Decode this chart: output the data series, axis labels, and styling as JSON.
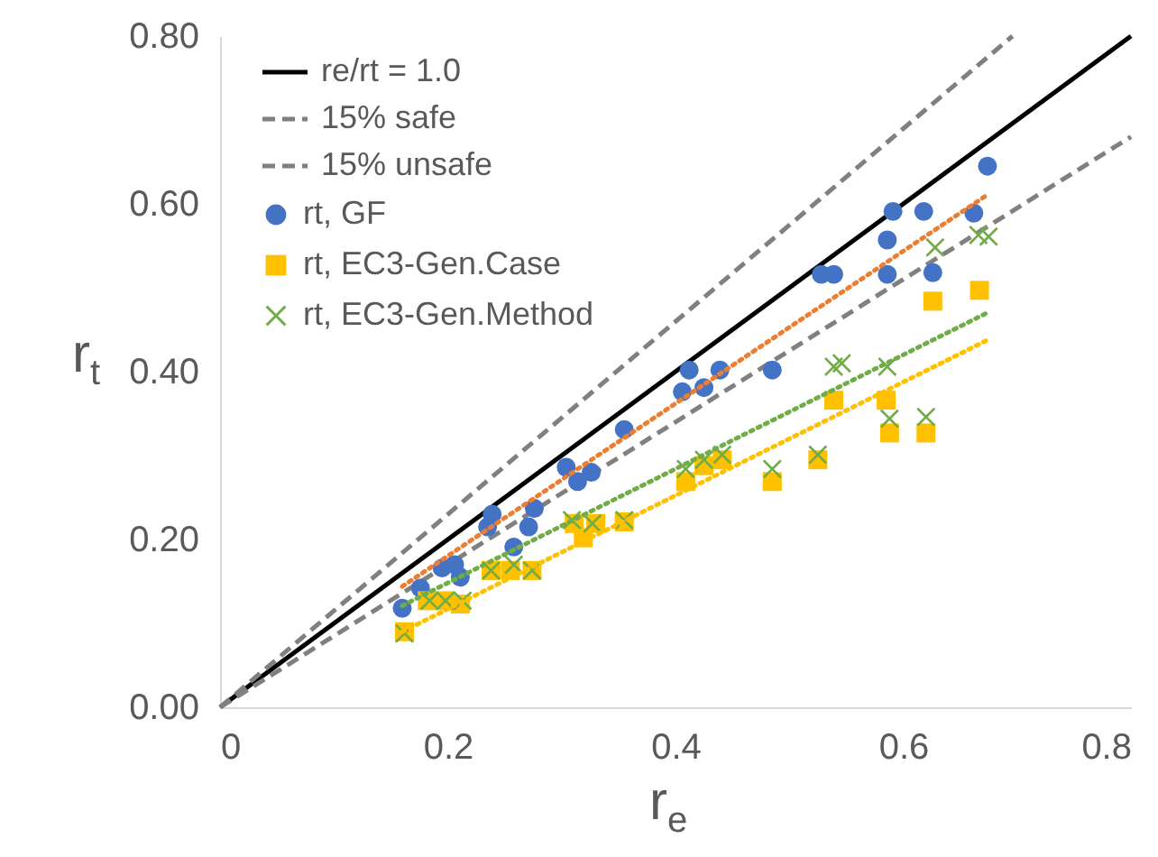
{
  "chart_data": {
    "type": "scatter",
    "xlabel": "r$_{e}$",
    "ylabel": "r$_{t}$",
    "legend": "top left",
    "xlim": [
      0,
      0.8
    ],
    "ylim": [
      0,
      0.8
    ],
    "xticks": [
      0,
      0.2,
      0.4,
      0.6,
      0.8
    ],
    "yticks": [
      {
        "value": 0,
        "label": "0.00"
      },
      {
        "value": 0.2,
        "label": "0.20"
      },
      {
        "value": 0.4,
        "label": "0.40"
      },
      {
        "value": 0.6,
        "label": "0.60"
      },
      {
        "value": 0.8,
        "label": "0.80"
      }
    ],
    "series": [
      {
        "name": "re/rt = 1.0",
        "type": "line",
        "line_style": "solid",
        "color": "#000000",
        "x": [
          0,
          0.8
        ],
        "values": [
          0,
          0.8
        ]
      },
      {
        "name": "15% safe",
        "type": "line",
        "line_style": "dashed",
        "color": "#808080",
        "x": [
          0,
          0.696
        ],
        "values": [
          0,
          0.8
        ]
      },
      {
        "name": "15% unsafe",
        "type": "line",
        "line_style": "dashed",
        "color": "#808080",
        "x": [
          0,
          0.8
        ],
        "values": [
          0,
          0.68
        ]
      },
      {
        "name": "rt, GF",
        "type": "scatter",
        "marker": "circle",
        "color": "#4472c4",
        "x": [
          0.16,
          0.176,
          0.195,
          0.206,
          0.211,
          0.235,
          0.239,
          0.258,
          0.271,
          0.276,
          0.304,
          0.314,
          0.326,
          0.355,
          0.406,
          0.412,
          0.425,
          0.439,
          0.485,
          0.528,
          0.539,
          0.586,
          0.626,
          0.586,
          0.591,
          0.618,
          0.662,
          0.674
        ],
        "values": [
          0.118,
          0.142,
          0.166,
          0.17,
          0.155,
          0.215,
          0.23,
          0.191,
          0.215,
          0.237,
          0.286,
          0.269,
          0.28,
          0.331,
          0.376,
          0.402,
          0.381,
          0.402,
          0.402,
          0.516,
          0.516,
          0.516,
          0.518,
          0.557,
          0.591,
          0.591,
          0.589,
          0.645
        ]
      },
      {
        "name": "rt, EC3-Gen.Case",
        "type": "scatter",
        "marker": "square",
        "color": "#ffc000",
        "x": [
          0.162,
          0.182,
          0.198,
          0.211,
          0.238,
          0.255,
          0.274,
          0.311,
          0.319,
          0.33,
          0.355,
          0.409,
          0.425,
          0.441,
          0.485,
          0.525,
          0.539,
          0.585,
          0.588,
          0.62,
          0.626,
          0.667
        ],
        "values": [
          0.09,
          0.127,
          0.127,
          0.123,
          0.163,
          0.163,
          0.163,
          0.219,
          0.202,
          0.219,
          0.221,
          0.269,
          0.288,
          0.295,
          0.269,
          0.295,
          0.366,
          0.366,
          0.327,
          0.327,
          0.484,
          0.497
        ]
      },
      {
        "name": "rt, EC3-Gen.Method",
        "type": "scatter",
        "marker": "cross",
        "color": "#70ad47",
        "x": [
          0.162,
          0.184,
          0.198,
          0.213,
          0.238,
          0.258,
          0.274,
          0.309,
          0.327,
          0.355,
          0.409,
          0.425,
          0.441,
          0.485,
          0.525,
          0.539,
          0.546,
          0.586,
          0.588,
          0.62,
          0.628,
          0.666,
          0.675
        ],
        "values": [
          0.088,
          0.127,
          0.127,
          0.127,
          0.163,
          0.17,
          0.163,
          0.223,
          0.219,
          0.223,
          0.284,
          0.295,
          0.301,
          0.284,
          0.301,
          0.406,
          0.41,
          0.406,
          0.344,
          0.346,
          0.548,
          0.563,
          0.561
        ]
      },
      {
        "type": "line",
        "line_style": "dotted",
        "color": "#ed7d31",
        "x": [
          0.16,
          0.673
        ],
        "values": [
          0.144,
          0.61
        ]
      },
      {
        "type": "line",
        "line_style": "dotted",
        "color": "#70ad47",
        "x": [
          0.16,
          0.675
        ],
        "values": [
          0.121,
          0.471
        ]
      },
      {
        "type": "line",
        "line_style": "dotted",
        "color": "#ffc000",
        "x": [
          0.16,
          0.673
        ],
        "values": [
          0.09,
          0.437
        ]
      }
    ]
  }
}
